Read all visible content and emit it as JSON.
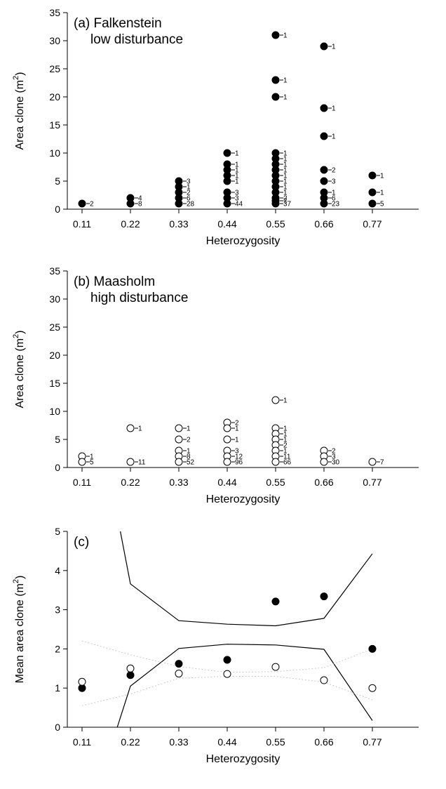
{
  "chart_data": [
    {
      "panel": "a",
      "type": "scatter",
      "title_lines": [
        "(a) Falkenstein",
        "low disturbance"
      ],
      "xlabel": "Heterozygosity",
      "ylabel": "Area clone (m",
      "ylabel_sup": "2",
      "ylabel_close": ")",
      "xticks": [
        "0.11",
        "0.22",
        "0.33",
        "0.44",
        "0.55",
        "0.66",
        "0.77"
      ],
      "yticks": [
        "0",
        "5",
        "10",
        "15",
        "20",
        "25",
        "30",
        "35"
      ],
      "ylim": [
        0,
        35
      ],
      "marker": "filled",
      "points": [
        {
          "x": 0.11,
          "y": 1,
          "n": "2"
        },
        {
          "x": 0.22,
          "y": 2,
          "n": "4"
        },
        {
          "x": 0.22,
          "y": 1,
          "n": "8"
        },
        {
          "x": 0.33,
          "y": 5,
          "n": "3"
        },
        {
          "x": 0.33,
          "y": 4,
          "n": "1"
        },
        {
          "x": 0.33,
          "y": 3,
          "n": "2"
        },
        {
          "x": 0.33,
          "y": 2,
          "n": "6"
        },
        {
          "x": 0.33,
          "y": 1,
          "n": "28"
        },
        {
          "x": 0.44,
          "y": 10,
          "n": "1"
        },
        {
          "x": 0.44,
          "y": 8,
          "n": "1"
        },
        {
          "x": 0.44,
          "y": 7,
          "n": "1"
        },
        {
          "x": 0.44,
          "y": 6,
          "n": "1"
        },
        {
          "x": 0.44,
          "y": 5,
          "n": "1"
        },
        {
          "x": 0.44,
          "y": 3,
          "n": "3"
        },
        {
          "x": 0.44,
          "y": 2,
          "n": "3"
        },
        {
          "x": 0.44,
          "y": 1,
          "n": "44"
        },
        {
          "x": 0.55,
          "y": 31,
          "n": "1"
        },
        {
          "x": 0.55,
          "y": 23,
          "n": "1"
        },
        {
          "x": 0.55,
          "y": 20,
          "n": "1"
        },
        {
          "x": 0.55,
          "y": 10,
          "n": "1"
        },
        {
          "x": 0.55,
          "y": 9,
          "n": "1"
        },
        {
          "x": 0.55,
          "y": 8,
          "n": "1"
        },
        {
          "x": 0.55,
          "y": 7,
          "n": "1"
        },
        {
          "x": 0.55,
          "y": 6,
          "n": "1"
        },
        {
          "x": 0.55,
          "y": 5,
          "n": "1"
        },
        {
          "x": 0.55,
          "y": 4,
          "n": "1"
        },
        {
          "x": 0.55,
          "y": 3,
          "n": "1"
        },
        {
          "x": 0.55,
          "y": 2,
          "n": "2"
        },
        {
          "x": 0.55,
          "y": 1.5,
          "n": "7"
        },
        {
          "x": 0.55,
          "y": 1,
          "n": "37"
        },
        {
          "x": 0.66,
          "y": 29,
          "n": "1"
        },
        {
          "x": 0.66,
          "y": 18,
          "n": "1"
        },
        {
          "x": 0.66,
          "y": 13,
          "n": "1"
        },
        {
          "x": 0.66,
          "y": 7,
          "n": "2"
        },
        {
          "x": 0.66,
          "y": 5,
          "n": "3"
        },
        {
          "x": 0.66,
          "y": 3,
          "n": "1"
        },
        {
          "x": 0.66,
          "y": 2,
          "n": "6"
        },
        {
          "x": 0.66,
          "y": 1,
          "n": "23"
        },
        {
          "x": 0.77,
          "y": 6,
          "n": "1"
        },
        {
          "x": 0.77,
          "y": 3,
          "n": "1"
        },
        {
          "x": 0.77,
          "y": 1,
          "n": "5"
        }
      ]
    },
    {
      "panel": "b",
      "type": "scatter",
      "title_lines": [
        "(b) Maasholm",
        "high disturbance"
      ],
      "xlabel": "Heterozygosity",
      "ylabel": "Area clone (m",
      "ylabel_sup": "2",
      "ylabel_close": ")",
      "xticks": [
        "0.11",
        "0.22",
        "0.33",
        "0.44",
        "0.55",
        "0.66",
        "0.77"
      ],
      "yticks": [
        "0",
        "5",
        "10",
        "15",
        "20",
        "25",
        "30",
        "35"
      ],
      "ylim": [
        0,
        35
      ],
      "marker": "open",
      "points": [
        {
          "x": 0.11,
          "y": 2,
          "n": "1"
        },
        {
          "x": 0.11,
          "y": 1,
          "n": "5"
        },
        {
          "x": 0.22,
          "y": 7,
          "n": "1"
        },
        {
          "x": 0.22,
          "y": 1,
          "n": "11"
        },
        {
          "x": 0.33,
          "y": 7,
          "n": "1"
        },
        {
          "x": 0.33,
          "y": 5,
          "n": "2"
        },
        {
          "x": 0.33,
          "y": 3,
          "n": "1"
        },
        {
          "x": 0.33,
          "y": 2,
          "n": "8"
        },
        {
          "x": 0.33,
          "y": 1,
          "n": "52"
        },
        {
          "x": 0.44,
          "y": 8,
          "n": "2"
        },
        {
          "x": 0.44,
          "y": 7,
          "n": "1"
        },
        {
          "x": 0.44,
          "y": 5,
          "n": "1"
        },
        {
          "x": 0.44,
          "y": 3,
          "n": "3"
        },
        {
          "x": 0.44,
          "y": 2,
          "n": "12"
        },
        {
          "x": 0.44,
          "y": 1,
          "n": "96"
        },
        {
          "x": 0.55,
          "y": 12,
          "n": "1"
        },
        {
          "x": 0.55,
          "y": 7,
          "n": "1"
        },
        {
          "x": 0.55,
          "y": 6,
          "n": "1"
        },
        {
          "x": 0.55,
          "y": 5,
          "n": "1"
        },
        {
          "x": 0.55,
          "y": 4,
          "n": "2"
        },
        {
          "x": 0.55,
          "y": 3,
          "n": "1"
        },
        {
          "x": 0.55,
          "y": 2,
          "n": "11"
        },
        {
          "x": 0.55,
          "y": 1,
          "n": "66"
        },
        {
          "x": 0.66,
          "y": 3,
          "n": "2"
        },
        {
          "x": 0.66,
          "y": 2,
          "n": "3"
        },
        {
          "x": 0.66,
          "y": 1,
          "n": "30"
        },
        {
          "x": 0.77,
          "y": 1,
          "n": "7"
        }
      ]
    },
    {
      "panel": "c",
      "type": "line",
      "title_lines": [
        "(c)"
      ],
      "xlabel": "Heterozygosity",
      "ylabel": "Mean area clone (m",
      "ylabel_sup": "2",
      "ylabel_close": ")",
      "xticks": [
        "0.11",
        "0.22",
        "0.33",
        "0.44",
        "0.55",
        "0.66",
        "0.77"
      ],
      "yticks": [
        "0",
        "1",
        "2",
        "3",
        "4",
        "5"
      ],
      "ylim": [
        0,
        5
      ],
      "series": [
        {
          "marker": "filled",
          "x": [
            0.11,
            0.22,
            0.33,
            0.44,
            0.55,
            0.66,
            0.77
          ],
          "y": [
            1.0,
            1.33,
            1.62,
            1.72,
            3.21,
            3.34,
            2.0
          ]
        },
        {
          "marker": "open",
          "x": [
            0.11,
            0.22,
            0.33,
            0.44,
            0.55,
            0.66,
            0.77
          ],
          "y": [
            1.16,
            1.5,
            1.37,
            1.36,
            1.54,
            1.2,
            1.0
          ]
        }
      ],
      "lines": [
        {
          "style": "solid",
          "x": [
            0.197,
            0.22,
            0.33,
            0.44,
            0.55,
            0.66,
            0.77
          ],
          "y": [
            5.0,
            3.66,
            2.72,
            2.63,
            2.59,
            2.78,
            4.43
          ]
        },
        {
          "style": "solid",
          "x": [
            0.19,
            0.22,
            0.33,
            0.44,
            0.55,
            0.66,
            0.77
          ],
          "y": [
            0.0,
            1.05,
            2.01,
            2.12,
            2.1,
            1.99,
            0.17
          ]
        },
        {
          "style": "dotted",
          "x": [
            0.11,
            0.22,
            0.33,
            0.44,
            0.55,
            0.66,
            0.77
          ],
          "y": [
            2.2,
            1.85,
            1.55,
            1.4,
            1.42,
            1.52,
            2.0
          ]
        },
        {
          "style": "dotted",
          "x": [
            0.11,
            0.22,
            0.33,
            0.44,
            0.55,
            0.66,
            0.77
          ],
          "y": [
            0.55,
            0.85,
            1.25,
            1.3,
            1.3,
            1.15,
            0.7
          ]
        }
      ]
    }
  ]
}
